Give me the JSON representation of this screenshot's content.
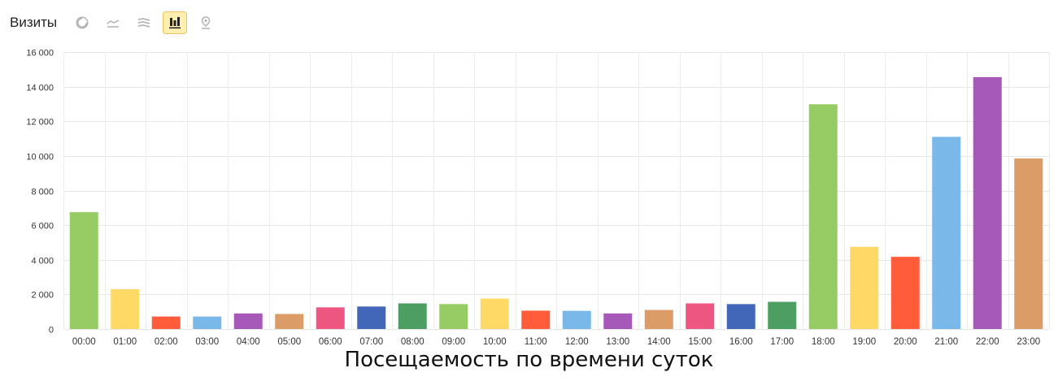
{
  "header": {
    "title": "Визиты",
    "view_buttons": [
      {
        "icon": "pie-chart-icon",
        "active": false
      },
      {
        "icon": "line-chart-icon",
        "active": false
      },
      {
        "icon": "area-chart-icon",
        "active": false
      },
      {
        "icon": "bar-chart-icon",
        "active": true
      },
      {
        "icon": "map-pin-icon",
        "active": false
      }
    ]
  },
  "chart_data": {
    "type": "bar",
    "title": "",
    "caption": "Посещаемость по времени суток",
    "xlabel": "",
    "ylabel": "",
    "ylim": [
      0,
      16000
    ],
    "yticks": [
      0,
      2000,
      4000,
      6000,
      8000,
      10000,
      12000,
      14000,
      16000
    ],
    "ytick_labels": [
      "0",
      "2 000",
      "4 000",
      "6 000",
      "8 000",
      "10 000",
      "12 000",
      "14 000",
      "16 000"
    ],
    "grid": true,
    "categories": [
      "00:00",
      "01:00",
      "02:00",
      "03:00",
      "04:00",
      "05:00",
      "06:00",
      "07:00",
      "08:00",
      "09:00",
      "10:00",
      "11:00",
      "12:00",
      "13:00",
      "14:00",
      "15:00",
      "16:00",
      "17:00",
      "18:00",
      "19:00",
      "20:00",
      "21:00",
      "22:00",
      "23:00"
    ],
    "values": [
      6750,
      2300,
      720,
      720,
      900,
      870,
      1250,
      1300,
      1480,
      1440,
      1760,
      1060,
      1050,
      900,
      1100,
      1480,
      1440,
      1570,
      12980,
      4750,
      4170,
      11100,
      14550,
      9850
    ],
    "colors": [
      "#96cc63",
      "#ffd966",
      "#ff5c3b",
      "#79b8e8",
      "#a759b9",
      "#dc9c67",
      "#ec5681",
      "#4267b9",
      "#4c9e63",
      "#96cc63",
      "#ffd966",
      "#ff5c3b",
      "#79b8e8",
      "#a759b9",
      "#dc9c67",
      "#ec5681",
      "#4267b9",
      "#4c9e63",
      "#96cc63",
      "#ffd966",
      "#ff5c3b",
      "#79b8e8",
      "#a759b9",
      "#dc9c67"
    ]
  }
}
